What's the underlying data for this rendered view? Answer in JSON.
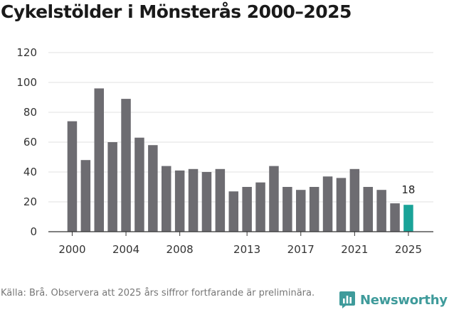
{
  "header": {
    "title": "Cykelstölder i Mönsterås 2000–2025"
  },
  "chart_data": {
    "type": "bar",
    "title": "Cykelstölder i Mönsterås 2000–2025",
    "xlabel": "",
    "ylabel": "",
    "categories": [
      "2000",
      "2001",
      "2002",
      "2003",
      "2004",
      "2005",
      "2006",
      "2007",
      "2008",
      "2009",
      "2010",
      "2011",
      "2012",
      "2013",
      "2014",
      "2015",
      "2016",
      "2017",
      "2018",
      "2019",
      "2020",
      "2021",
      "2022",
      "2023",
      "2024",
      "2025"
    ],
    "values": [
      74,
      48,
      96,
      60,
      89,
      63,
      58,
      44,
      41,
      42,
      40,
      42,
      27,
      30,
      33,
      44,
      30,
      28,
      30,
      37,
      36,
      42,
      30,
      28,
      19,
      18
    ],
    "x_tick_labels": [
      "2000",
      "2004",
      "2008",
      "2013",
      "2017",
      "2021",
      "2025"
    ],
    "y_ticks": [
      "0",
      "20",
      "40",
      "60",
      "80",
      "100",
      "120"
    ],
    "ylim": [
      0,
      120
    ],
    "grid": true,
    "bar_color": "#6d6c71",
    "highlight_color": "#1aa398",
    "highlight_category": "2025",
    "highlight_label": "18"
  },
  "footer": {
    "source": "Källa: Brå. Observera att 2025 års siffror fortfarande är preliminära.",
    "brand": "Newsworthy",
    "brand_color": "#3f9b9b",
    "brand_icon": "newsworthy-logo-icon"
  }
}
